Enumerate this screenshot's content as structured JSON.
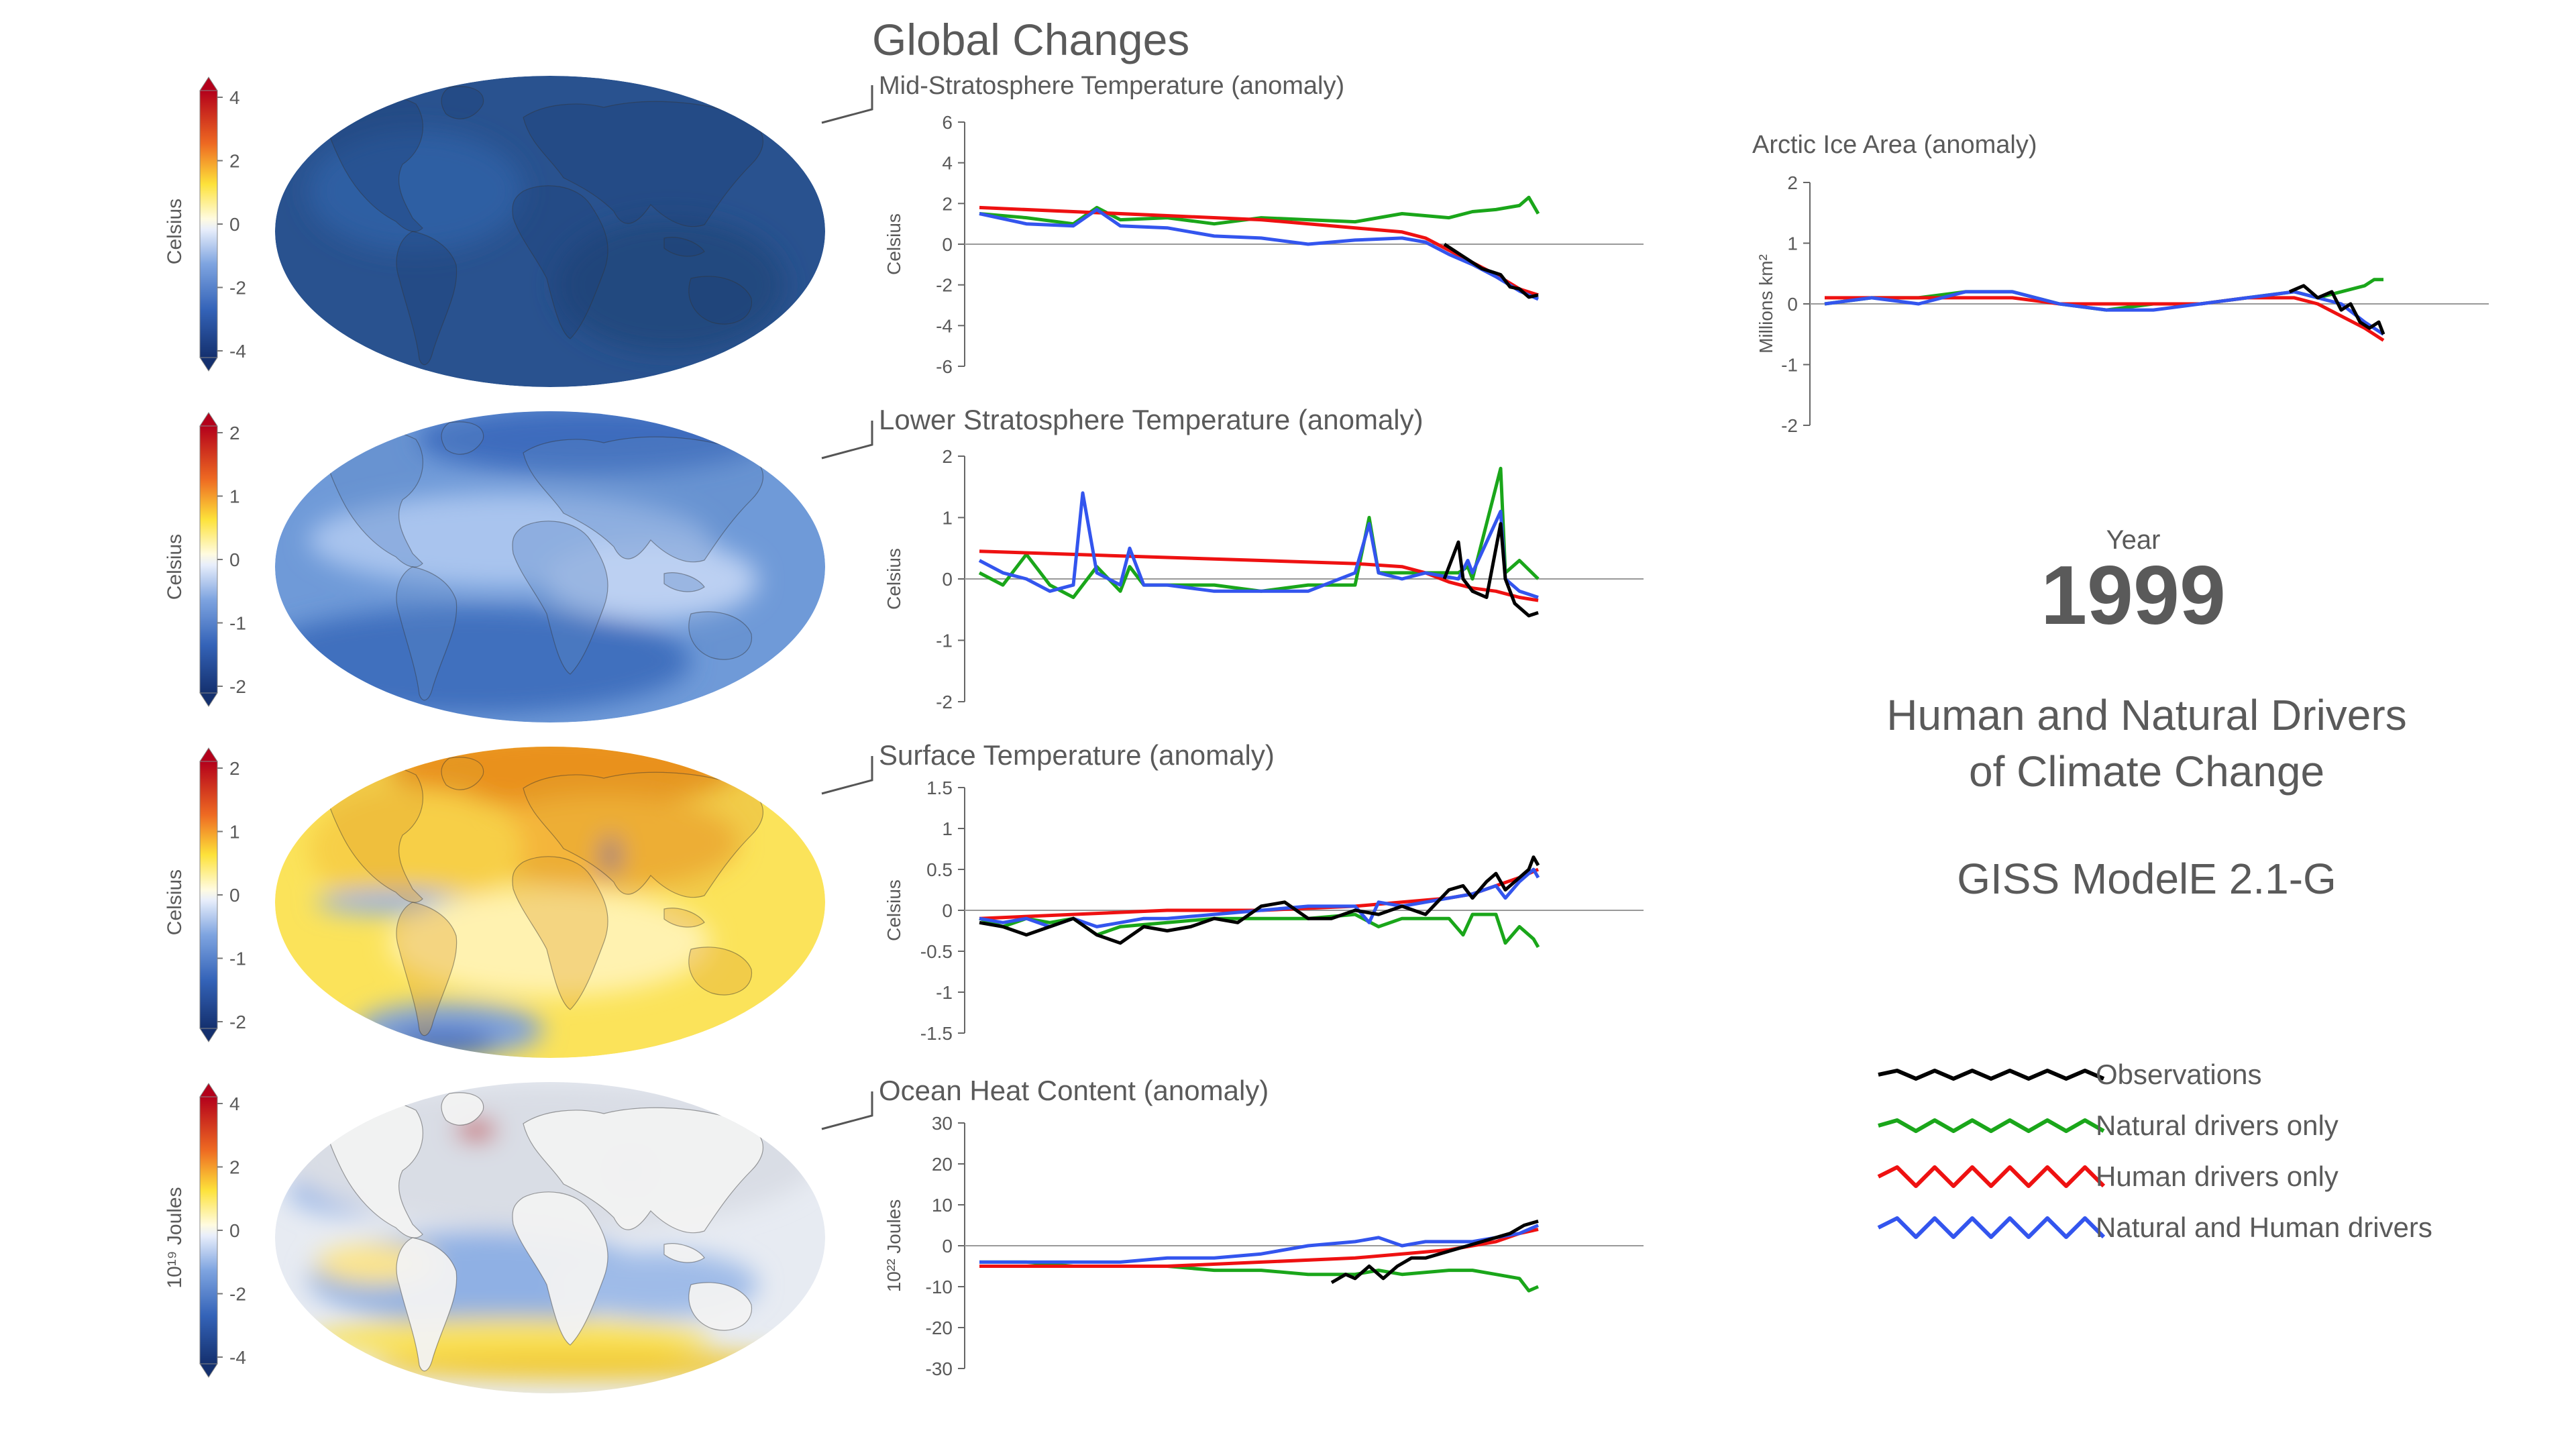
{
  "page": {
    "title": "Global Changes",
    "year_label": "Year",
    "year": "1999",
    "subtitle_lines": [
      "Human and Natural Drivers",
      "of Climate Change"
    ],
    "model": "GISS ModelE 2.1-G"
  },
  "colors": {
    "observations": "#000000",
    "natural": "#1aa61a",
    "human": "#ee1111",
    "both": "#3355ee",
    "text": "#5a5a5a",
    "axis": "#666666",
    "zero_line": "#999999"
  },
  "legend": [
    {
      "label": "Observations",
      "color_key": "observations",
      "swatch_icon": "wavy-line-icon"
    },
    {
      "label": "Natural drivers only",
      "color_key": "natural",
      "swatch_icon": "wavy-line-icon"
    },
    {
      "label": "Human drivers only",
      "color_key": "human",
      "swatch_icon": "wavy-line-icon"
    },
    {
      "label": "Natural and Human drivers",
      "color_key": "both",
      "swatch_icon": "wavy-line-icon"
    }
  ],
  "maps": [
    {
      "colorbar_label": "Celsius",
      "ticks": [
        "4",
        "2",
        "0",
        "-2",
        "-4"
      ],
      "pattern": "cold-uniform"
    },
    {
      "colorbar_label": "Celsius",
      "ticks": [
        "2",
        "1",
        "0",
        "-1",
        "-2"
      ],
      "pattern": "cool"
    },
    {
      "colorbar_label": "Celsius",
      "ticks": [
        "2",
        "1",
        "0",
        "-1",
        "-2"
      ],
      "pattern": "warm"
    },
    {
      "colorbar_label": "10¹⁹ Joules",
      "ticks": [
        "4",
        "2",
        "0",
        "-2",
        "-4"
      ],
      "pattern": "ocean"
    }
  ],
  "chart_data": [
    {
      "type": "line",
      "title": "Mid-Stratosphere Temperature (anomaly)",
      "ylabel": "Celsius",
      "ylim": [
        -6,
        6
      ],
      "yticks": [
        "6",
        "4",
        "2",
        "0",
        "-2",
        "-4",
        "-6"
      ],
      "xlim": [
        1880,
        2020
      ],
      "series": [
        {
          "name": "Observations",
          "color_key": "observations",
          "x": [
            1979,
            1983,
            1987,
            1991,
            1993,
            1995,
            1997,
            1999
          ],
          "y": [
            0.0,
            -0.6,
            -1.2,
            -1.5,
            -2.1,
            -2.2,
            -2.6,
            -2.5
          ]
        },
        {
          "name": "Natural drivers only",
          "color_key": "natural",
          "x": [
            1880,
            1890,
            1900,
            1905,
            1910,
            1920,
            1930,
            1940,
            1950,
            1960,
            1970,
            1980,
            1985,
            1990,
            1995,
            1997,
            1999
          ],
          "y": [
            1.5,
            1.3,
            1.0,
            1.8,
            1.2,
            1.3,
            1.0,
            1.3,
            1.2,
            1.1,
            1.5,
            1.3,
            1.6,
            1.7,
            1.9,
            2.3,
            1.5
          ]
        },
        {
          "name": "Human drivers only",
          "color_key": "human",
          "x": [
            1880,
            1900,
            1920,
            1940,
            1960,
            1970,
            1975,
            1980,
            1985,
            1990,
            1995,
            1999
          ],
          "y": [
            1.8,
            1.6,
            1.4,
            1.2,
            0.8,
            0.6,
            0.3,
            -0.3,
            -0.9,
            -1.5,
            -2.2,
            -2.5
          ]
        },
        {
          "name": "Natural and Human drivers",
          "color_key": "both",
          "x": [
            1880,
            1890,
            1900,
            1905,
            1910,
            1920,
            1930,
            1940,
            1950,
            1960,
            1970,
            1975,
            1980,
            1985,
            1990,
            1995,
            1999
          ],
          "y": [
            1.5,
            1.0,
            0.9,
            1.7,
            0.9,
            0.8,
            0.4,
            0.3,
            0.0,
            0.2,
            0.3,
            0.1,
            -0.5,
            -1.0,
            -1.6,
            -2.3,
            -2.7
          ]
        }
      ]
    },
    {
      "type": "line",
      "title": "Lower Stratosphere Temperature (anomaly)",
      "ylabel": "Celsius",
      "ylim": [
        -2,
        2
      ],
      "yticks": [
        "2",
        "1",
        "0",
        "-1",
        "-2"
      ],
      "xlim": [
        1880,
        2020
      ],
      "series": [
        {
          "name": "Observations",
          "color_key": "observations",
          "x": [
            1979,
            1982,
            1983,
            1985,
            1988,
            1991,
            1992,
            1994,
            1997,
            1999
          ],
          "y": [
            0.0,
            0.6,
            0.0,
            -0.2,
            -0.3,
            0.9,
            0.0,
            -0.4,
            -0.6,
            -0.55
          ]
        },
        {
          "name": "Natural drivers only",
          "color_key": "natural",
          "x": [
            1880,
            1885,
            1890,
            1895,
            1900,
            1902,
            1905,
            1910,
            1912,
            1915,
            1920,
            1930,
            1940,
            1950,
            1960,
            1963,
            1965,
            1970,
            1982,
            1984,
            1985,
            1991,
            1992,
            1995,
            1999
          ],
          "y": [
            0.1,
            -0.1,
            0.4,
            -0.1,
            -0.3,
            -0.1,
            0.2,
            -0.2,
            0.2,
            -0.1,
            -0.1,
            -0.1,
            -0.2,
            -0.1,
            -0.1,
            1.0,
            0.1,
            0.1,
            0.1,
            0.2,
            0.0,
            1.8,
            0.1,
            0.3,
            0.0
          ]
        },
        {
          "name": "Human drivers only",
          "color_key": "human",
          "x": [
            1880,
            1900,
            1920,
            1940,
            1960,
            1970,
            1975,
            1980,
            1985,
            1990,
            1995,
            1999
          ],
          "y": [
            0.45,
            0.4,
            0.35,
            0.3,
            0.25,
            0.2,
            0.1,
            -0.05,
            -0.15,
            -0.2,
            -0.3,
            -0.35
          ]
        },
        {
          "name": "Natural and Human drivers",
          "color_key": "both",
          "x": [
            1880,
            1885,
            1890,
            1895,
            1900,
            1902,
            1905,
            1910,
            1912,
            1915,
            1920,
            1930,
            1940,
            1950,
            1960,
            1963,
            1965,
            1970,
            1975,
            1982,
            1984,
            1985,
            1991,
            1992,
            1995,
            1999
          ],
          "y": [
            0.3,
            0.1,
            0.0,
            -0.2,
            -0.1,
            1.4,
            0.1,
            -0.1,
            0.5,
            -0.1,
            -0.1,
            -0.2,
            -0.2,
            -0.2,
            0.1,
            0.9,
            0.1,
            0.0,
            0.1,
            0.0,
            0.3,
            0.1,
            1.1,
            0.0,
            -0.2,
            -0.3
          ]
        }
      ]
    },
    {
      "type": "line",
      "title": "Surface Temperature (anomaly)",
      "ylabel": "Celsius",
      "ylim": [
        -1.5,
        1.5
      ],
      "yticks": [
        "1.5",
        "1",
        "0.5",
        "0",
        "-0.5",
        "-1",
        "-1.5"
      ],
      "xlim": [
        1880,
        2020
      ],
      "series": [
        {
          "name": "Observations",
          "color_key": "observations",
          "x": [
            1880,
            1885,
            1890,
            1895,
            1900,
            1905,
            1910,
            1915,
            1920,
            1925,
            1930,
            1935,
            1940,
            1945,
            1950,
            1955,
            1960,
            1965,
            1970,
            1975,
            1980,
            1983,
            1985,
            1988,
            1990,
            1992,
            1995,
            1997,
            1998,
            1999
          ],
          "y": [
            -0.15,
            -0.2,
            -0.3,
            -0.2,
            -0.1,
            -0.3,
            -0.4,
            -0.2,
            -0.25,
            -0.2,
            -0.1,
            -0.15,
            0.05,
            0.1,
            -0.1,
            -0.1,
            0.0,
            -0.05,
            0.05,
            -0.05,
            0.25,
            0.3,
            0.15,
            0.35,
            0.45,
            0.25,
            0.4,
            0.5,
            0.65,
            0.55
          ]
        },
        {
          "name": "Natural drivers only",
          "color_key": "natural",
          "x": [
            1880,
            1885,
            1890,
            1895,
            1900,
            1905,
            1910,
            1920,
            1930,
            1940,
            1950,
            1960,
            1965,
            1970,
            1980,
            1983,
            1985,
            1990,
            1992,
            1995,
            1998,
            1999
          ],
          "y": [
            -0.1,
            -0.2,
            -0.1,
            -0.15,
            -0.1,
            -0.3,
            -0.2,
            -0.15,
            -0.1,
            -0.1,
            -0.1,
            -0.05,
            -0.2,
            -0.1,
            -0.1,
            -0.3,
            -0.05,
            -0.05,
            -0.4,
            -0.2,
            -0.35,
            -0.45
          ]
        },
        {
          "name": "Human drivers only",
          "color_key": "human",
          "x": [
            1880,
            1900,
            1920,
            1940,
            1960,
            1970,
            1980,
            1985,
            1990,
            1995,
            1999
          ],
          "y": [
            -0.1,
            -0.05,
            0.0,
            0.0,
            0.05,
            0.1,
            0.15,
            0.2,
            0.3,
            0.4,
            0.5
          ]
        },
        {
          "name": "Natural and Human drivers",
          "color_key": "both",
          "x": [
            1880,
            1885,
            1890,
            1895,
            1900,
            1905,
            1910,
            1915,
            1920,
            1930,
            1940,
            1950,
            1960,
            1963,
            1965,
            1970,
            1975,
            1980,
            1985,
            1990,
            1992,
            1995,
            1998,
            1999
          ],
          "y": [
            -0.1,
            -0.15,
            -0.1,
            -0.2,
            -0.1,
            -0.2,
            -0.15,
            -0.1,
            -0.1,
            -0.05,
            0.0,
            0.05,
            0.05,
            -0.15,
            0.1,
            0.05,
            0.1,
            0.15,
            0.2,
            0.3,
            0.15,
            0.35,
            0.5,
            0.4
          ]
        }
      ]
    },
    {
      "type": "line",
      "title": "Ocean Heat Content (anomaly)",
      "ylabel": "10²² Joules",
      "ylim": [
        -30,
        30
      ],
      "yticks": [
        "30",
        "20",
        "10",
        "0",
        "-10",
        "-20",
        "-30"
      ],
      "xlim": [
        1880,
        2020
      ],
      "series": [
        {
          "name": "Observations",
          "color_key": "observations",
          "x": [
            1955,
            1958,
            1960,
            1963,
            1966,
            1969,
            1972,
            1975,
            1978,
            1981,
            1984,
            1987,
            1990,
            1993,
            1996,
            1999
          ],
          "y": [
            -9,
            -7,
            -8,
            -5,
            -8,
            -5,
            -3,
            -3,
            -2,
            -1,
            0,
            1,
            2,
            3,
            5,
            6
          ]
        },
        {
          "name": "Natural drivers only",
          "color_key": "natural",
          "x": [
            1880,
            1890,
            1900,
            1910,
            1920,
            1930,
            1940,
            1950,
            1960,
            1965,
            1970,
            1980,
            1985,
            1990,
            1995,
            1997,
            1999
          ],
          "y": [
            -4,
            -4,
            -5,
            -5,
            -5,
            -6,
            -6,
            -7,
            -7,
            -6,
            -7,
            -6,
            -6,
            -7,
            -8,
            -11,
            -10
          ]
        },
        {
          "name": "Human drivers only",
          "color_key": "human",
          "x": [
            1880,
            1900,
            1920,
            1940,
            1960,
            1970,
            1980,
            1985,
            1990,
            1995,
            1999
          ],
          "y": [
            -5,
            -5,
            -5,
            -4,
            -3,
            -2,
            -1,
            0,
            1,
            3,
            4
          ]
        },
        {
          "name": "Natural and Human drivers",
          "color_key": "both",
          "x": [
            1880,
            1900,
            1910,
            1920,
            1930,
            1940,
            1950,
            1960,
            1965,
            1970,
            1975,
            1980,
            1985,
            1990,
            1995,
            1999
          ],
          "y": [
            -4,
            -4,
            -4,
            -3,
            -3,
            -2,
            0,
            1,
            2,
            0,
            1,
            1,
            1,
            2,
            3,
            5
          ]
        }
      ]
    },
    {
      "type": "line",
      "title": "Arctic Ice Area (anomaly)",
      "ylabel": "Millions km²",
      "ylim": [
        -2,
        2
      ],
      "yticks": [
        "2",
        "1",
        "0",
        "-1",
        "-2"
      ],
      "xlim": [
        1880,
        2020
      ],
      "series": [
        {
          "name": "Observations",
          "color_key": "observations",
          "x": [
            1979,
            1982,
            1985,
            1988,
            1990,
            1992,
            1994,
            1996,
            1998,
            1999
          ],
          "y": [
            0.2,
            0.3,
            0.1,
            0.2,
            -0.1,
            0.0,
            -0.3,
            -0.4,
            -0.3,
            -0.5
          ]
        },
        {
          "name": "Natural drivers only",
          "color_key": "natural",
          "x": [
            1880,
            1890,
            1900,
            1910,
            1920,
            1930,
            1940,
            1950,
            1960,
            1970,
            1980,
            1985,
            1990,
            1995,
            1997,
            1999
          ],
          "y": [
            0.0,
            0.1,
            0.1,
            0.2,
            0.2,
            0.0,
            -0.1,
            0.0,
            0.0,
            0.1,
            0.2,
            0.1,
            0.2,
            0.3,
            0.4,
            0.4
          ]
        },
        {
          "name": "Human drivers only",
          "color_key": "human",
          "x": [
            1880,
            1890,
            1900,
            1910,
            1920,
            1930,
            1940,
            1950,
            1960,
            1970,
            1980,
            1985,
            1990,
            1995,
            1999
          ],
          "y": [
            0.1,
            0.1,
            0.1,
            0.1,
            0.1,
            0.0,
            0.0,
            0.0,
            0.0,
            0.1,
            0.1,
            0.0,
            -0.2,
            -0.4,
            -0.6
          ]
        },
        {
          "name": "Natural and Human drivers",
          "color_key": "both",
          "x": [
            1880,
            1890,
            1900,
            1910,
            1920,
            1930,
            1940,
            1950,
            1960,
            1970,
            1980,
            1985,
            1990,
            1995,
            1999
          ],
          "y": [
            0.0,
            0.1,
            0.0,
            0.2,
            0.2,
            0.0,
            -0.1,
            -0.1,
            0.0,
            0.1,
            0.2,
            0.1,
            0.0,
            -0.3,
            -0.5
          ]
        }
      ]
    }
  ]
}
